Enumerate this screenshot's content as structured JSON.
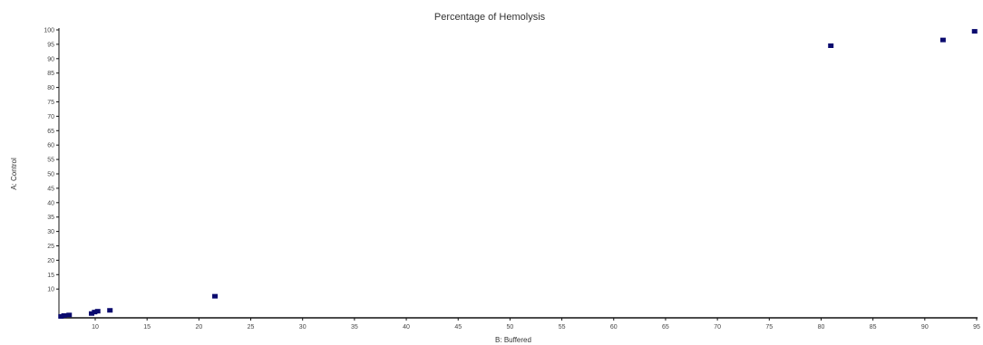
{
  "chart_data": {
    "type": "scatter",
    "title": "Percentage of Hemolysis",
    "xlabel": "B: Buffered",
    "ylabel": "A: Control",
    "xlim": [
      0,
      90
    ],
    "ylim": [
      0,
      100
    ],
    "x_ticks": [
      "10",
      "15",
      "20",
      "25",
      "30",
      "35",
      "40",
      "45",
      "50",
      "55",
      "60",
      "65",
      "70",
      "75",
      "80",
      "85",
      "90",
      "95"
    ],
    "y_ticks": [
      "10",
      "15",
      "20",
      "25",
      "30",
      "35",
      "40",
      "45",
      "50",
      "55",
      "60",
      "65",
      "70",
      "75",
      "80",
      "85",
      "90",
      "95",
      "100"
    ],
    "grid": false,
    "legend": "none",
    "marker_color": "#0a0a6e",
    "series": [
      {
        "points": [
          {
            "x": 0.2,
            "y": 0.5
          },
          {
            "x": 0.5,
            "y": 0.8
          },
          {
            "x": 1.0,
            "y": 1.0
          },
          {
            "x": 3.2,
            "y": 1.5
          },
          {
            "x": 3.5,
            "y": 2.0
          },
          {
            "x": 3.8,
            "y": 2.3
          },
          {
            "x": 5.0,
            "y": 2.6
          },
          {
            "x": 15.3,
            "y": 7.5
          },
          {
            "x": 75.7,
            "y": 94.5
          },
          {
            "x": 86.7,
            "y": 96.5
          },
          {
            "x": 89.8,
            "y": 99.5
          }
        ]
      }
    ]
  }
}
